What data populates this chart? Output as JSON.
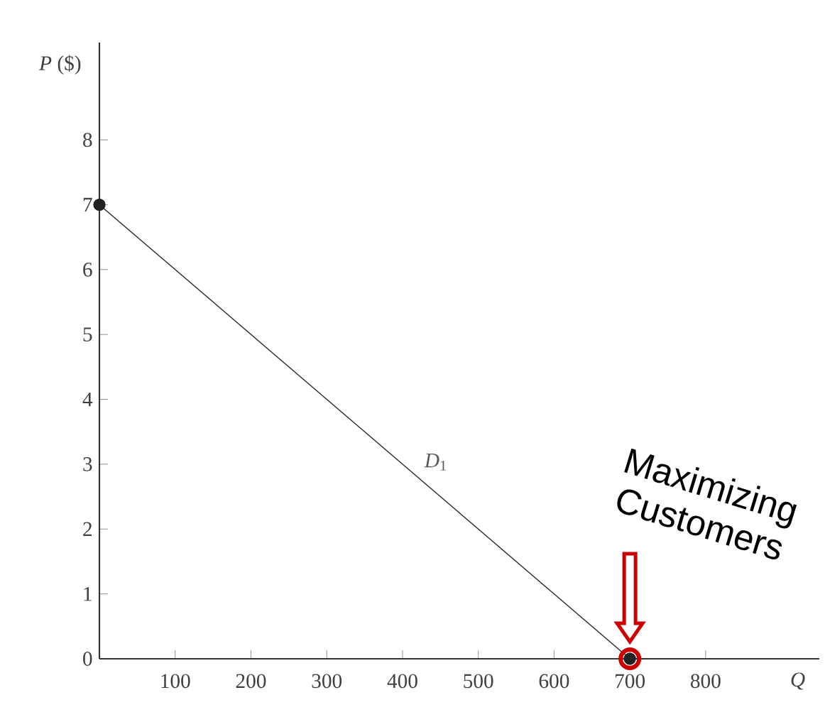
{
  "chart_data": {
    "type": "line",
    "xlabel": "Q",
    "ylabel": "*P* ($)",
    "x": [
      0,
      700
    ],
    "series": [
      {
        "name": "*D*$_{1}$",
        "color": "#222222",
        "values": [
          7,
          0
        ]
      }
    ],
    "marker": "circle",
    "line_style": "solid",
    "grid": false,
    "xlim": [
      0,
      950
    ],
    "ylim": [
      0,
      9.5
    ],
    "xticks": [
      100,
      200,
      300,
      400,
      500,
      600,
      700,
      800
    ],
    "yticks": [
      0,
      1,
      2,
      3,
      4,
      5,
      6,
      7,
      8
    ],
    "annotations": [
      {
        "text": "Maximizing Customers",
        "x": 700,
        "y": 0
      }
    ]
  }
}
